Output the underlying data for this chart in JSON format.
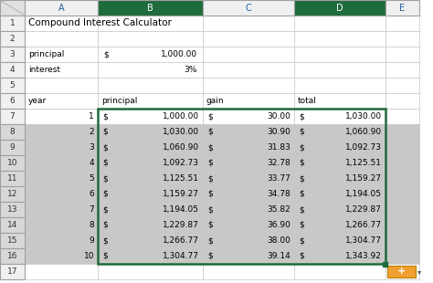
{
  "title": "Compound Interest Calculator",
  "principal_label": "principal",
  "interest_label": "interest",
  "principal_value": "1,000.00",
  "interest_value": "3%",
  "col_headers": [
    "A",
    "B",
    "C",
    "D",
    "E"
  ],
  "data": [
    [
      1,
      1000.0,
      30.0,
      1030.0
    ],
    [
      2,
      1030.0,
      30.9,
      1060.9
    ],
    [
      3,
      1060.9,
      31.83,
      1092.73
    ],
    [
      4,
      1092.73,
      32.78,
      1125.51
    ],
    [
      5,
      1125.51,
      33.77,
      1159.27
    ],
    [
      6,
      1159.27,
      34.78,
      1194.05
    ],
    [
      7,
      1194.05,
      35.82,
      1229.87
    ],
    [
      8,
      1229.87,
      36.9,
      1266.77
    ],
    [
      9,
      1266.77,
      38.0,
      1304.77
    ],
    [
      10,
      1304.77,
      39.14,
      1343.92
    ]
  ],
  "bg_color": "#ffffff",
  "col_header_bg_normal": "#f0f0f0",
  "col_header_bg_selected": "#1e6b3c",
  "col_header_text_normal": "#2060a0",
  "col_header_text_selected": "#ffffff",
  "row_header_bg": "#f0f0f0",
  "row_header_text": "#333333",
  "cell_bg_white": "#ffffff",
  "cell_bg_gray": "#c8c8c8",
  "grid_color": "#c8c8c8",
  "header_grid_color": "#a0a0a0",
  "selection_border": "#1e6b3c",
  "text_color": "#000000",
  "corner_bg": "#e0e0e0",
  "corner_line": "#a0a0a0"
}
